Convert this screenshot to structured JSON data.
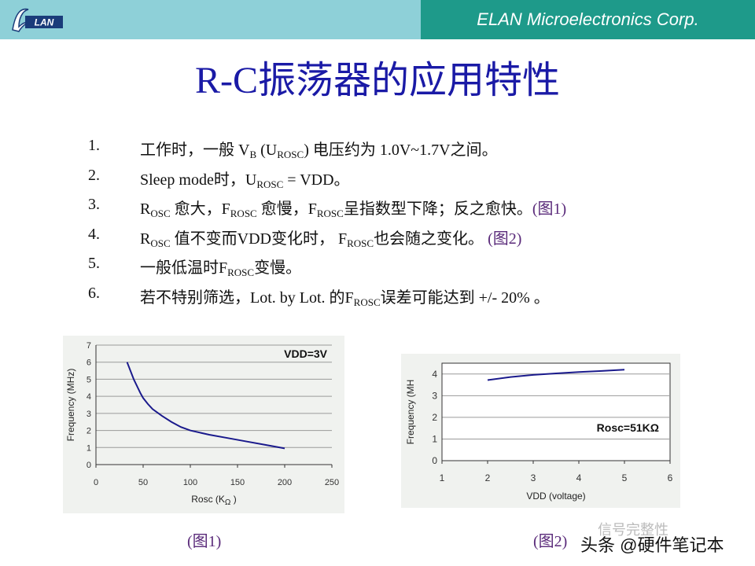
{
  "header": {
    "company": "ELAN Microelectronics Corp.",
    "logo_text": "LAN",
    "logo_icon": "elan-logo-icon"
  },
  "slide": {
    "title": "R-C振荡器的应用特性"
  },
  "items": [
    {
      "num": "1.",
      "a": "工作时，一般 V",
      "sub1": "B",
      "b": " (U",
      "sub2": "ROSC",
      "c": ") 电压约为 1.0V~1.7V之间。"
    },
    {
      "num": "2.",
      "a": "Sleep mode时，U",
      "sub1": "ROSC",
      "b": " = VDD。"
    },
    {
      "num": "3.",
      "a": "R",
      "sub1": "OSC",
      "b": " 愈大，F",
      "sub2": "ROSC",
      "c": " 愈慢，F",
      "sub3": "ROSC",
      "d": "呈指数型下降；反之愈快。",
      "ref": "(图1)"
    },
    {
      "num": "4.",
      "a": "R",
      "sub1": "OSC",
      "b": " 值不变而VDD变化时， F",
      "sub2": "ROSC",
      "c": "也会随之变化。 ",
      "ref": "(图2)"
    },
    {
      "num": "5.",
      "a": "一般低温时F",
      "sub1": "ROSC",
      "b": "变慢。"
    },
    {
      "num": "6.",
      "a": "若不特别筛选，Lot. by Lot. 的F",
      "sub1": "ROSC",
      "b": "误差可能达到 +/- 20% 。"
    }
  ],
  "chart_data": [
    {
      "type": "line",
      "annotation": "VDD=3V",
      "xlabel": "Rosc (K",
      "xlabel_unit": "Ω",
      "xlabel_close": " )",
      "ylabel": "Frequency (MHz)",
      "xlim": [
        0,
        250
      ],
      "ylim": [
        0,
        7
      ],
      "x_ticks": [
        "0",
        "50",
        "100",
        "150",
        "200",
        "250"
      ],
      "y_ticks": [
        "0",
        "1",
        "2",
        "3",
        "4",
        "5",
        "6",
        "7"
      ],
      "x": [
        33,
        40,
        47,
        50,
        55,
        60,
        70,
        80,
        90,
        100,
        120,
        140,
        160,
        180,
        200
      ],
      "values": [
        6.0,
        5.0,
        4.2,
        3.9,
        3.55,
        3.25,
        2.85,
        2.5,
        2.2,
        2.0,
        1.75,
        1.55,
        1.35,
        1.15,
        0.95
      ],
      "caption": "(图1)",
      "grid": true,
      "line_color": "#1a1a8c"
    },
    {
      "type": "line",
      "annotation": "Rosc=51KΩ",
      "xlabel": "VDD (voltage)",
      "ylabel": "Frequency (MH",
      "xlim": [
        1,
        6
      ],
      "ylim": [
        0,
        4.5
      ],
      "x_ticks": [
        "1",
        "2",
        "3",
        "4",
        "5",
        "6"
      ],
      "y_ticks": [
        "0",
        "1",
        "2",
        "3",
        "4"
      ],
      "x": [
        2,
        2.5,
        3,
        3.5,
        4,
        4.5,
        5
      ],
      "values": [
        3.72,
        3.86,
        3.96,
        4.03,
        4.09,
        4.14,
        4.2
      ],
      "caption": "(图2)",
      "grid": true,
      "line_color": "#1a1a8c"
    }
  ],
  "watermark": {
    "line1": "信号完整性",
    "line2": "头条 @硬件笔记本"
  }
}
